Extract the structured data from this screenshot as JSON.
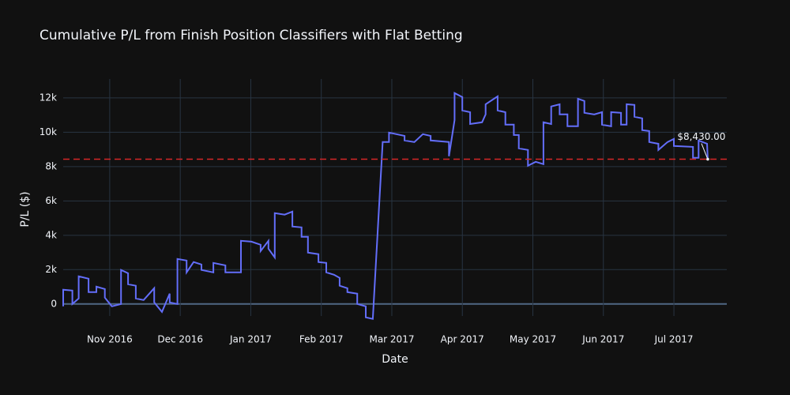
{
  "chart_data": {
    "type": "line",
    "title": "Cumulative P/L from Finish Position Classifiers with Flat Betting",
    "x_label": "Date",
    "y_label": "P/L ($)",
    "color": "#636efa",
    "grid": true,
    "x": [
      -0.66,
      -0.66,
      -0.53,
      -0.53,
      -0.44,
      -0.44,
      -0.3,
      -0.3,
      -0.19,
      -0.19,
      -0.07,
      -0.07,
      0.03,
      0.16,
      0.16,
      0.26,
      0.26,
      0.37,
      0.37,
      0.48,
      0.63,
      0.63,
      0.74,
      0.85,
      0.85,
      0.96,
      0.96,
      1.09,
      1.09,
      1.19,
      1.3,
      1.3,
      1.47,
      1.47,
      1.64,
      1.64,
      1.86,
      1.86,
      2.01,
      2.14,
      2.14,
      2.25,
      2.25,
      2.34,
      2.34,
      2.48,
      2.59,
      2.59,
      2.72,
      2.72,
      2.81,
      2.81,
      2.96,
      2.96,
      3.07,
      3.07,
      3.18,
      3.26,
      3.26,
      3.37,
      3.37,
      3.51,
      3.51,
      3.63,
      3.63,
      3.73,
      3.87,
      3.96,
      3.96,
      4.18,
      4.18,
      4.32,
      4.44,
      4.55,
      4.55,
      4.81,
      4.81,
      4.89,
      4.89,
      5.0,
      5.0,
      5.11,
      5.11,
      5.28,
      5.33,
      5.33,
      5.5,
      5.5,
      5.61,
      5.61,
      5.73,
      5.73,
      5.8,
      5.8,
      5.93,
      5.93,
      6.04,
      6.15,
      6.15,
      6.26,
      6.26,
      6.38,
      6.38,
      6.49,
      6.49,
      6.64,
      6.64,
      6.73,
      6.73,
      6.87,
      6.98,
      6.98,
      7.11,
      7.11,
      7.25,
      7.25,
      7.33,
      7.33,
      7.44,
      7.44,
      7.55,
      7.55,
      7.65,
      7.65,
      7.78,
      7.78,
      7.91,
      8.0,
      8.0,
      8.27,
      8.27,
      8.35,
      8.35,
      8.47,
      8.48
    ],
    "values": [
      -140,
      830,
      780,
      0,
      320,
      1610,
      1470,
      690,
      690,
      1010,
      870,
      370,
      -140,
      0,
      1980,
      1790,
      1150,
      1060,
      320,
      230,
      920,
      90,
      -460,
      600,
      90,
      0,
      2620,
      2530,
      1840,
      2440,
      2300,
      1980,
      1840,
      2390,
      2250,
      1840,
      1840,
      3680,
      3630,
      3450,
      3080,
      3680,
      3220,
      2710,
      5290,
      5200,
      5380,
      4510,
      4460,
      3910,
      3910,
      2990,
      2900,
      2440,
      2390,
      1840,
      1700,
      1520,
      1060,
      920,
      690,
      600,
      0,
      -140,
      -780,
      -870,
      9430,
      9430,
      9980,
      9790,
      9520,
      9430,
      9890,
      9790,
      9520,
      9430,
      8600,
      10710,
      12280,
      12050,
      11270,
      11170,
      10480,
      10580,
      11040,
      11630,
      12090,
      11270,
      11170,
      10440,
      10440,
      9840,
      9840,
      9060,
      8970,
      8050,
      8280,
      8140,
      10580,
      10480,
      11500,
      11630,
      11040,
      11040,
      10350,
      10350,
      11950,
      11820,
      11130,
      11040,
      11170,
      10440,
      10350,
      11170,
      11130,
      10440,
      10440,
      11630,
      11590,
      10900,
      10810,
      10120,
      10070,
      9430,
      9330,
      8970,
      9430,
      9610,
      9200,
      9150,
      8510,
      8510,
      9520,
      9330,
      8430
    ],
    "xlim": [
      -0.66,
      8.75
    ],
    "xticks": [
      {
        "value": 0,
        "label": "Nov 2016"
      },
      {
        "value": 1,
        "label": "Dec 2016"
      },
      {
        "value": 2,
        "label": "Jan 2017"
      },
      {
        "value": 3,
        "label": "Feb 2017"
      },
      {
        "value": 4,
        "label": "Mar 2017"
      },
      {
        "value": 5,
        "label": "Apr 2017"
      },
      {
        "value": 6,
        "label": "May 2017"
      },
      {
        "value": 7,
        "label": "Jun 2017"
      },
      {
        "value": 8,
        "label": "Jul 2017"
      }
    ],
    "ylim": [
      -700,
      13100
    ],
    "yticks": [
      0,
      {
        "value": 2000,
        "label": "2k"
      },
      {
        "value": 4000,
        "label": "4k"
      },
      {
        "value": 6000,
        "label": "6k"
      },
      {
        "value": 8000,
        "label": "8k"
      },
      {
        "value": 10000,
        "label": "10k"
      },
      {
        "value": 12000,
        "label": "12k"
      }
    ],
    "reference_line": {
      "value": 8430,
      "color": "#d62728"
    },
    "annotation": {
      "text": "$8,430.00",
      "x": 8.48,
      "y": 8430
    }
  }
}
